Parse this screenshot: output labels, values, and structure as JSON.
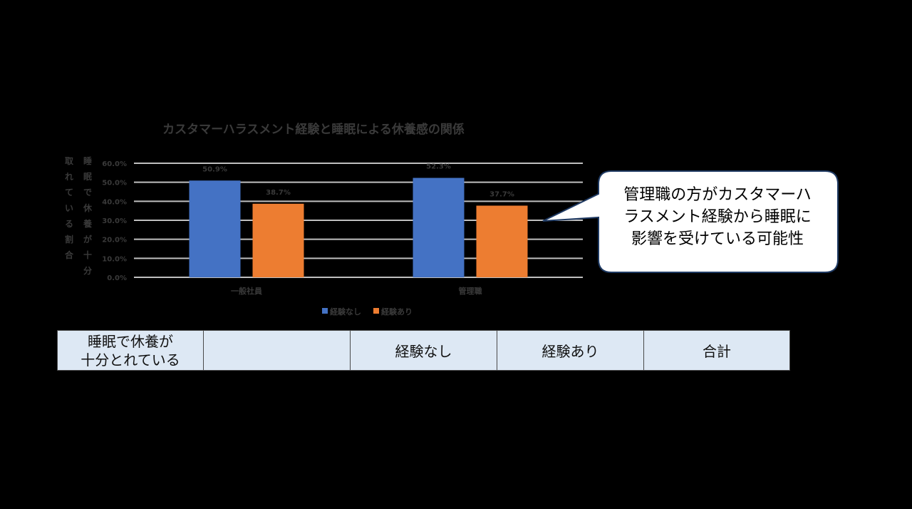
{
  "chart_data": {
    "type": "bar",
    "title": "カスタマーハラスメント経験と睡眠による休養感の関係",
    "ylabel_lines": [
      "睡眠で休養が十分",
      "取れている割合"
    ],
    "categories": [
      "一般社員",
      "管理職"
    ],
    "series": [
      {
        "name": "経験なし",
        "color": "#4472c4",
        "values": [
          50.9,
          52.3
        ],
        "labels": [
          "50.9%",
          "52.3%"
        ]
      },
      {
        "name": "経験あり",
        "color": "#ed7d31",
        "values": [
          38.7,
          37.7
        ],
        "labels": [
          "38.7%",
          "37.7%"
        ]
      }
    ],
    "yticks": [
      "0.0%",
      "10.0%",
      "20.0%",
      "30.0%",
      "40.0%",
      "50.0%",
      "60.0%"
    ],
    "ylim": [
      0,
      60
    ],
    "grid": true,
    "legend_position": "bottom"
  },
  "callout": {
    "lines": [
      "管理職の方がカスタマーハ",
      "ラスメント経験から睡眠に",
      "影響を受けている可能性"
    ]
  },
  "table": {
    "header": {
      "line1": "睡眠で休養が",
      "line2": "十分とれている",
      "col1": "",
      "col2": "経験なし",
      "col3": "経験あり",
      "col4": "合計"
    }
  }
}
